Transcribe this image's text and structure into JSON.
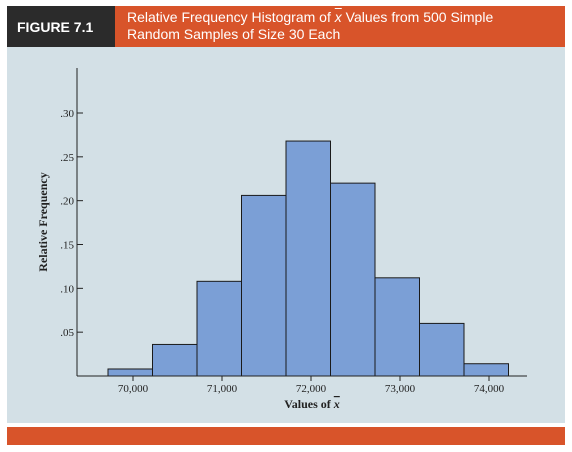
{
  "figure": {
    "label": "FIGURE 7.1",
    "title_part1": "Relative Frequency Histogram of ",
    "title_symbol": "x",
    "title_part2": " Values from 500 Simple",
    "title_line2": "Random Samples of Size 30 Each"
  },
  "colors": {
    "accent": "#d8542a",
    "label_bg": "#2b2b2b",
    "panel_bg": "#d3e0e6",
    "bar_fill": "#7b9fd6",
    "bar_stroke": "#1a1a1a"
  },
  "chart_data": {
    "type": "bar",
    "title": "Relative Frequency Histogram of x̄ Values from 500 Simple Random Samples of Size 30 Each",
    "xlabel": "Values of x̄",
    "ylabel": "Relative Frequency",
    "bin_width": 500,
    "bins": [
      {
        "start": 70000,
        "value": 0.008
      },
      {
        "start": 70500,
        "value": 0.036
      },
      {
        "start": 71000,
        "value": 0.108
      },
      {
        "start": 71500,
        "value": 0.206
      },
      {
        "start": 72000,
        "value": 0.268
      },
      {
        "start": 72500,
        "value": 0.22
      },
      {
        "start": 73000,
        "value": 0.112
      },
      {
        "start": 73500,
        "value": 0.06
      },
      {
        "start": 74000,
        "value": 0.014
      }
    ],
    "xlim": [
      69750,
      74500
    ],
    "ylim": [
      0,
      0.3
    ],
    "yticks": [
      0.05,
      0.1,
      0.15,
      0.2,
      0.25,
      0.3
    ],
    "ytick_labels": [
      ".05",
      ".10",
      ".15",
      ".20",
      ".25",
      ".30"
    ],
    "xticks": [
      70000,
      71000,
      72000,
      73000,
      74000
    ],
    "xtick_labels": [
      "70,000",
      "71,000",
      "72,000",
      "73,000",
      "74,000"
    ],
    "grid": false,
    "legend": "none"
  }
}
